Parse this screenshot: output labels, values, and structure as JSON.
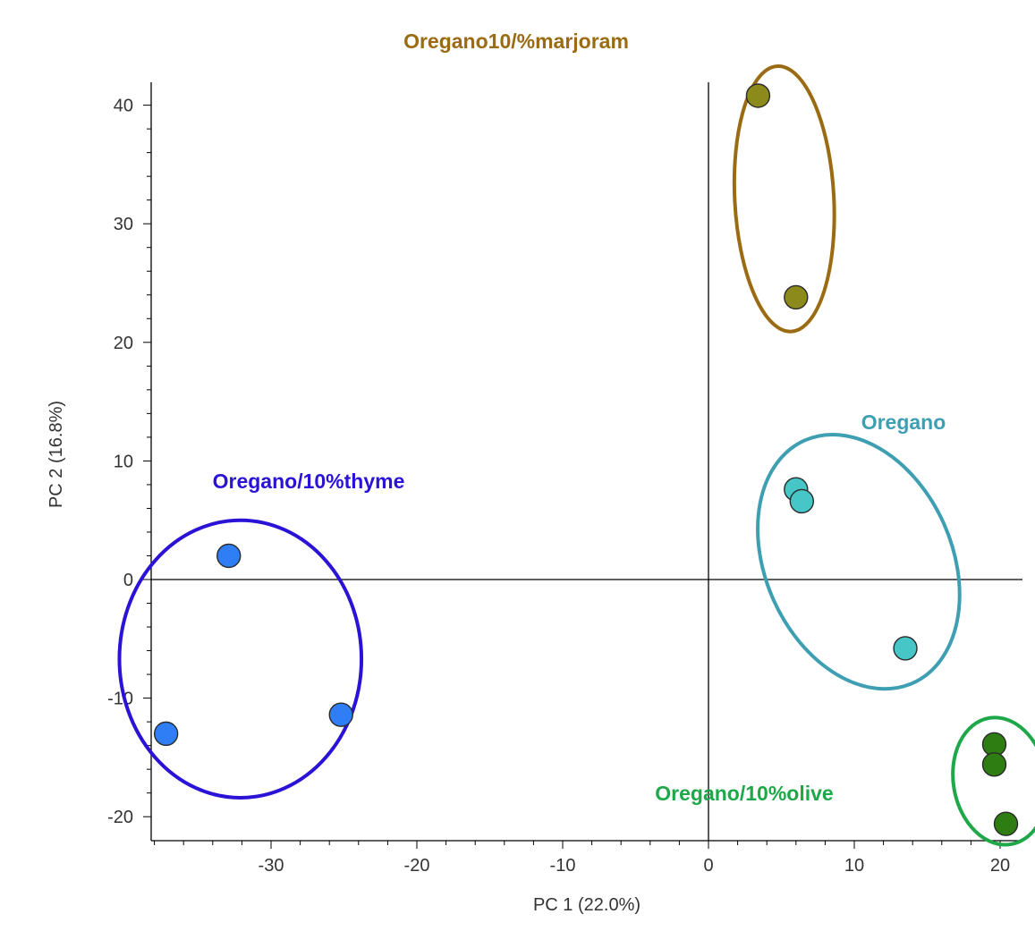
{
  "chart_data": {
    "type": "scatter",
    "title": "",
    "xlabel": "PC 1 (22.0%)",
    "ylabel": "PC 2 (16.8%)",
    "xlim": [
      -38.5,
      21.8
    ],
    "ylim": [
      -21.9,
      41.9
    ],
    "x_ticks": [
      -30,
      -20,
      -10,
      0,
      10,
      20
    ],
    "y_ticks": [
      40,
      30,
      20,
      10,
      0,
      -10,
      -20
    ],
    "x_tick_labels": [
      "-30",
      "-20",
      "-10",
      "0",
      "10",
      "20"
    ],
    "y_tick_labels": [
      "40",
      "30",
      "20",
      "10",
      "0",
      "-10",
      "-20"
    ],
    "grid": false,
    "zero_lines": true,
    "series": [
      {
        "name": "Oregano10/%marjoram",
        "color": "#9a6b12",
        "point_color": "#8c8a1a",
        "points": [
          [
            3.4,
            40.8
          ],
          [
            6.0,
            23.8
          ]
        ],
        "ellipse": {
          "cx": 5.2,
          "cy": 32.1,
          "rx": 3.4,
          "ry": 11.2,
          "angle_deg": -3
        }
      },
      {
        "name": "Oregano",
        "color": "#3e9fb2",
        "point_color": "#46c6c6",
        "points": [
          [
            6.0,
            7.6
          ],
          [
            6.4,
            6.6
          ],
          [
            13.5,
            -5.8
          ]
        ],
        "ellipse": {
          "cx": 10.3,
          "cy": 1.5,
          "rx": 6.4,
          "ry": 11.2,
          "angle_deg": -24
        }
      },
      {
        "name": "Oregano/10%thyme",
        "color": "#2a12d6",
        "point_color": "#2f7ef5",
        "points": [
          [
            -32.9,
            2.0
          ],
          [
            -25.2,
            -11.4
          ],
          [
            -37.2,
            -13.0
          ]
        ],
        "ellipse": {
          "cx": -32.1,
          "cy": -6.7,
          "rx": 8.3,
          "ry": 11.7,
          "angle_deg": 0
        }
      },
      {
        "name": "Oregano/10%olive",
        "color": "#1fa84a",
        "point_color": "#2e7d12",
        "points": [
          [
            19.6,
            -13.9
          ],
          [
            19.6,
            -15.6
          ],
          [
            20.4,
            -20.6
          ]
        ],
        "ellipse": {
          "cx": 20.0,
          "cy": -17.0,
          "rx": 3.2,
          "ry": 5.4,
          "angle_deg": -10
        }
      }
    ]
  }
}
